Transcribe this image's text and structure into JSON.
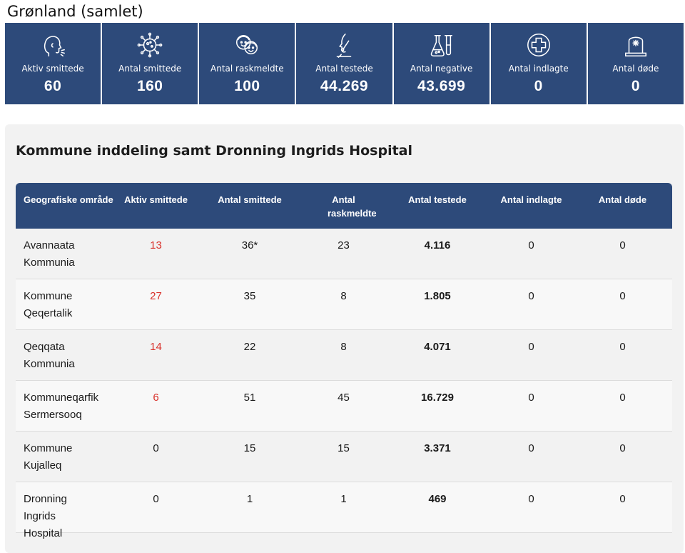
{
  "page_title": "Grønland (samlet)",
  "stats": [
    {
      "icon": "coughing-person-icon",
      "label": "Aktiv smittede",
      "value": "60"
    },
    {
      "icon": "virus-icon",
      "label": "Antal smittede",
      "value": "160"
    },
    {
      "icon": "healthy-people-icon",
      "label": "Antal raskmeldte",
      "value": "100"
    },
    {
      "icon": "nose-swab-test-icon",
      "label": "Antal testede",
      "value": "44.269"
    },
    {
      "icon": "lab-flask-icon",
      "label": "Antal negative",
      "value": "43.699"
    },
    {
      "icon": "medical-cross-icon",
      "label": "Antal indlagte",
      "value": "0"
    },
    {
      "icon": "gravestone-icon",
      "label": "Antal døde",
      "value": "0"
    }
  ],
  "panel_title": "Kommune inddeling samt Dronning Ingrids Hospital",
  "table": {
    "headers": [
      "Geografiske område",
      "Aktiv smittede",
      "Antal smittede",
      "Antal raskmeldte",
      "Antal testede",
      "Antal indlagte",
      "Antal døde"
    ],
    "rows": [
      {
        "name": "Avannaata Kommunia",
        "active": "13",
        "infected": "36*",
        "recovered": "23",
        "tested": "4.116",
        "admitted": "0",
        "deaths": "0"
      },
      {
        "name": "Kommune Qeqertalik",
        "active": "27",
        "infected": "35",
        "recovered": "8",
        "tested": "1.805",
        "admitted": "0",
        "deaths": "0"
      },
      {
        "name": "Qeqqata Kommunia",
        "active": "14",
        "infected": "22",
        "recovered": "8",
        "tested": "4.071",
        "admitted": "0",
        "deaths": "0"
      },
      {
        "name": "Kommuneqarfik Sermersooq",
        "active": "6",
        "infected": "51",
        "recovered": "45",
        "tested": "16.729",
        "admitted": "0",
        "deaths": "0"
      },
      {
        "name": "Kommune Kujalleq",
        "active": "0",
        "infected": "15",
        "recovered": "15",
        "tested": "3.371",
        "admitted": "0",
        "deaths": "0"
      },
      {
        "name": "Dronning Ingrids Hospital",
        "active": "0",
        "infected": "1",
        "recovered": "1",
        "tested": "469",
        "admitted": "0",
        "deaths": "0"
      }
    ]
  },
  "colors": {
    "header_blue": "#2d4a7a",
    "active_red": "#d9312b",
    "panel_bg": "#f2f2f2"
  }
}
